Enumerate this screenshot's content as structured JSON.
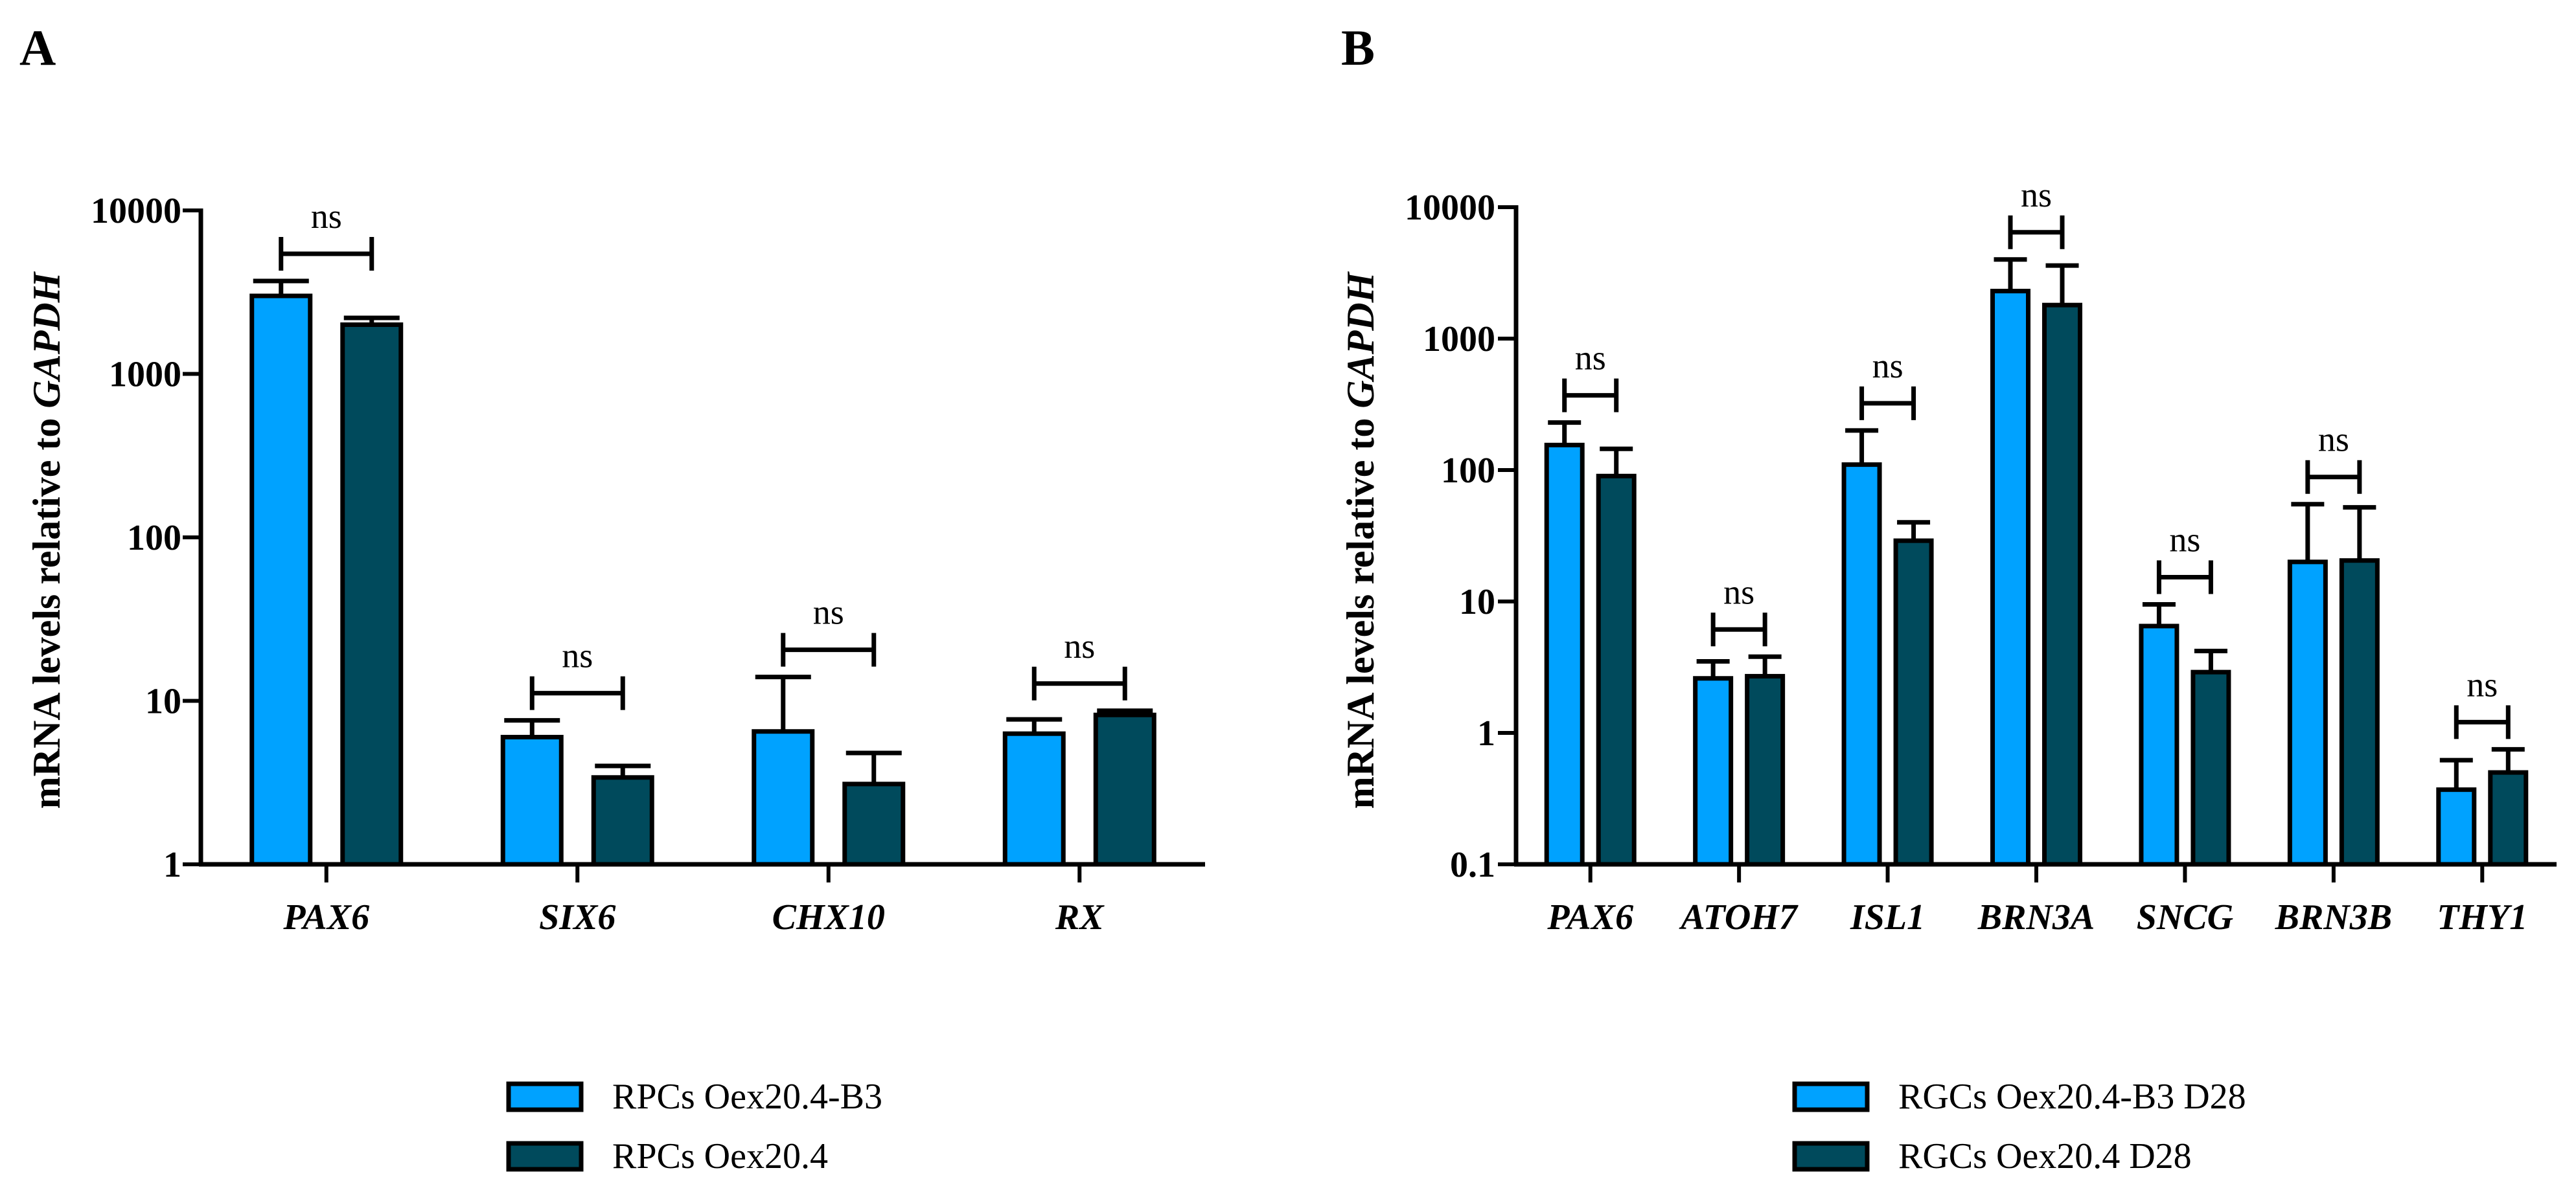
{
  "chart_data": [
    {
      "type": "bar",
      "panel": "A",
      "yscale": "log",
      "ylim": [
        1,
        10000
      ],
      "ylabel_prefix": "mRNA levels relative to ",
      "ylabel_gene": "GAPDH",
      "yticks": [
        "1",
        "10",
        "100",
        "1000",
        "10000"
      ],
      "categories": [
        "PAX6",
        "SIX6",
        "CHX10",
        "RX"
      ],
      "series": [
        {
          "name": "RPCs Oex20.4-B3",
          "color": "#00a2ff",
          "values": [
            3000,
            6,
            6.5,
            6.3
          ],
          "errors_upper": [
            3700,
            7.6,
            14,
            7.7
          ]
        },
        {
          "name": "RPCs Oex20.4",
          "color": "#004a5c",
          "values": [
            2000,
            3.4,
            3.1,
            8.2
          ],
          "errors_upper": [
            2200,
            4.0,
            4.8,
            8.7
          ]
        }
      ],
      "significance": [
        "ns",
        "ns",
        "ns",
        "ns"
      ],
      "legend_position": "bottom"
    },
    {
      "type": "bar",
      "panel": "B",
      "yscale": "log",
      "ylim": [
        0.1,
        10000
      ],
      "ylabel_prefix": "mRNA levels relative to ",
      "ylabel_gene": "GAPDH",
      "yticks": [
        "0.1",
        "1",
        "10",
        "100",
        "1000",
        "10000"
      ],
      "categories": [
        "PAX6",
        "ATOH7",
        "ISL1",
        "BRN3A",
        "SNCG",
        "BRN3B",
        "THY1"
      ],
      "series": [
        {
          "name": "RGCs Oex20.4-B3 D28",
          "color": "#00a2ff",
          "values": [
            155,
            2.6,
            110,
            2300,
            6.5,
            20,
            0.37
          ],
          "errors_upper": [
            230,
            3.5,
            200,
            4000,
            9.5,
            55,
            0.62
          ]
        },
        {
          "name": "RGCs Oex20.4 D28",
          "color": "#004a5c",
          "values": [
            90,
            2.7,
            29,
            1800,
            2.9,
            20.5,
            0.5
          ],
          "errors_upper": [
            145,
            3.8,
            40,
            3600,
            4.2,
            52,
            0.75
          ]
        }
      ],
      "significance": [
        "ns",
        "ns",
        "ns",
        "ns",
        "ns",
        "ns",
        "ns"
      ],
      "legend_position": "bottom"
    }
  ]
}
